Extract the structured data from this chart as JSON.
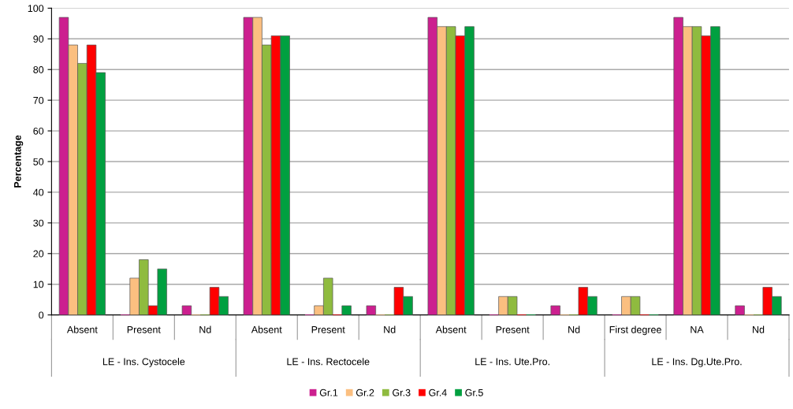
{
  "chart_data": {
    "type": "bar",
    "ylabel": "Percentage",
    "categories": [
      "Absent",
      "Present",
      "Nd",
      "Absent",
      "Present",
      "Nd",
      "Absent",
      "Present",
      "Nd",
      "First degree",
      "NA",
      "Nd"
    ],
    "annotations": [
      "LE - Ins. Cystocele",
      "LE - Ins. Rectocele",
      "LE - Ins. Ute.Pro.",
      "LE - Ins. Dg.Ute.Pro."
    ],
    "series": [
      {
        "name": "Gr.1",
        "color": "#cc1f8f",
        "values": [
          97,
          0,
          3,
          97,
          0,
          3,
          97,
          0,
          3,
          0,
          97,
          3
        ]
      },
      {
        "name": "Gr.2",
        "color": "#fbbf80",
        "values": [
          88,
          12,
          0,
          97,
          3,
          0,
          94,
          6,
          0,
          6,
          94,
          0
        ]
      },
      {
        "name": "Gr.3",
        "color": "#8fbb3f",
        "values": [
          82,
          18,
          0,
          88,
          12,
          0,
          94,
          6,
          0,
          6,
          94,
          0
        ]
      },
      {
        "name": "Gr.4",
        "color": "#ff0000",
        "values": [
          88,
          3,
          9,
          91,
          0,
          9,
          91,
          0,
          9,
          0,
          91,
          9
        ]
      },
      {
        "name": "Gr.5",
        "color": "#00a040",
        "values": [
          79,
          15,
          6,
          91,
          3,
          6,
          94,
          0,
          6,
          0,
          94,
          6
        ]
      }
    ],
    "ylim": [
      0,
      100
    ],
    "yticks": [
      0,
      10,
      20,
      30,
      40,
      50,
      60,
      70,
      80,
      90,
      100
    ],
    "grid": "y",
    "legend": "bottom"
  }
}
